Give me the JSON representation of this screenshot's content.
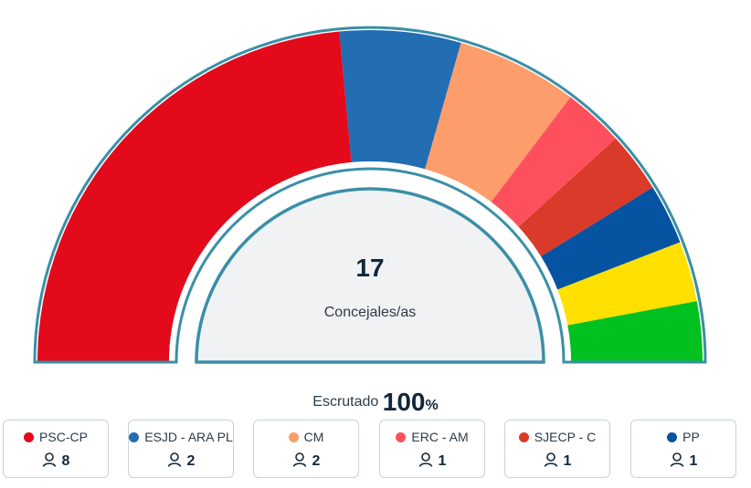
{
  "chart_data": {
    "type": "pie",
    "subtype": "parliament-hemicycle",
    "total_seats": 17,
    "total_label": "Concejales/as",
    "categories": [
      "PSC-CP",
      "ESJD - ARA PL",
      "CM",
      "ERC - AM",
      "SJECP - C",
      "PP"
    ],
    "values": [
      8,
      2,
      2,
      1,
      1,
      1
    ],
    "colors": [
      "#e20a1b",
      "#236db3",
      "#fd9d6c",
      "#fe505c",
      "#d93a29",
      "#0553a1"
    ],
    "unlabeled_segments": [
      {
        "values": 1,
        "color": "#ffe000"
      },
      {
        "values": 1,
        "color": "#00c11f"
      }
    ],
    "outline_color": "#3a8fa6",
    "center_fill": "#f0f2f4"
  },
  "scrutiny": {
    "label": "Escrutado",
    "value": "100",
    "unit": "%"
  },
  "parties": [
    {
      "name": "PSC-CP",
      "seats": "8",
      "color": "#e20a1b"
    },
    {
      "name": "ESJD - ARA PL",
      "seats": "2",
      "color": "#236db3"
    },
    {
      "name": "CM",
      "seats": "2",
      "color": "#fd9d6c"
    },
    {
      "name": "ERC - AM",
      "seats": "1",
      "color": "#fe505c"
    },
    {
      "name": "SJECP - C",
      "seats": "1",
      "color": "#d93a29"
    },
    {
      "name": "PP",
      "seats": "1",
      "color": "#0553a1"
    }
  ],
  "icons": {
    "seat_icon": "person-icon"
  }
}
